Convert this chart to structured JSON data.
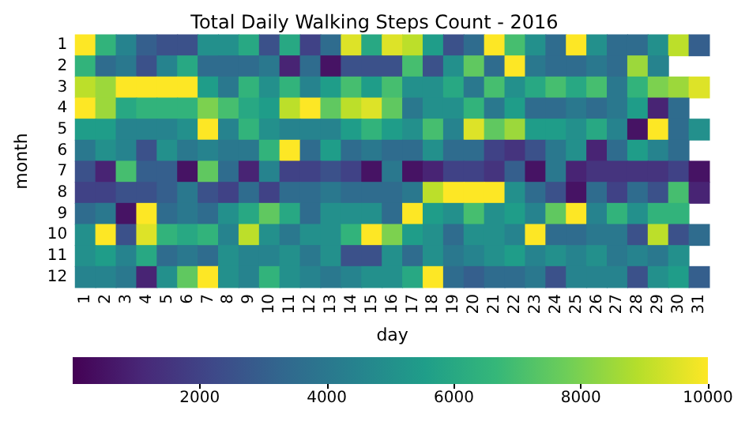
{
  "chart_data": {
    "type": "heatmap",
    "title": "Total Daily Walking Steps Count - 2016",
    "xlabel": "day",
    "ylabel": "month",
    "categories": [
      "1",
      "2",
      "3",
      "4",
      "5",
      "6",
      "7",
      "8",
      "9",
      "10",
      "11",
      "12",
      "13",
      "14",
      "15",
      "16",
      "17",
      "18",
      "19",
      "20",
      "21",
      "22",
      "23",
      "24",
      "25",
      "26",
      "27",
      "28",
      "29",
      "30",
      "31"
    ],
    "y_categories": [
      "1",
      "2",
      "3",
      "4",
      "5",
      "6",
      "7",
      "8",
      "9",
      "10",
      "11",
      "12"
    ],
    "cells": [
      [
        10000,
        6500,
        4500,
        3000,
        2500,
        2500,
        5000,
        5000,
        6000,
        2500,
        6000,
        2000,
        3500,
        9500,
        6000,
        9500,
        9000,
        5500,
        2500,
        3500,
        10000,
        7000,
        5000,
        3500,
        10000,
        5000,
        3500,
        3500,
        5000,
        9000,
        3000
      ],
      [
        6500,
        3500,
        4000,
        2500,
        4500,
        6000,
        3500,
        3500,
        3500,
        4000,
        1000,
        3500,
        500,
        2500,
        2500,
        2500,
        7000,
        2500,
        5000,
        7500,
        3500,
        10000,
        4000,
        3500,
        3500,
        4000,
        3500,
        8500,
        4500,
        null,
        null
      ],
      [
        9000,
        8500,
        10000,
        10000,
        10000,
        10000,
        5500,
        4000,
        6500,
        5000,
        6500,
        4500,
        5500,
        7000,
        5500,
        7000,
        5000,
        5000,
        6000,
        4000,
        7000,
        5000,
        6000,
        7000,
        6000,
        7000,
        4000,
        6500,
        8000,
        8500,
        9500
      ],
      [
        10000,
        8500,
        6000,
        6500,
        6500,
        6500,
        8000,
        7000,
        6000,
        5500,
        9000,
        10000,
        7500,
        9000,
        9500,
        7500,
        4000,
        5000,
        5000,
        6500,
        4000,
        5500,
        3500,
        3500,
        4000,
        3500,
        4000,
        5500,
        1000,
        3500,
        null
      ],
      [
        5500,
        5500,
        4500,
        4500,
        4500,
        5000,
        10000,
        4500,
        6500,
        5000,
        4500,
        4500,
        4500,
        5500,
        6500,
        5500,
        5000,
        7000,
        4500,
        9500,
        7500,
        8500,
        5500,
        5500,
        5000,
        6000,
        4500,
        500,
        10000,
        3500,
        5000
      ],
      [
        4000,
        5000,
        4500,
        2500,
        5000,
        4000,
        4500,
        4000,
        4000,
        6500,
        10000,
        3500,
        5500,
        3500,
        4000,
        3500,
        3500,
        5000,
        3500,
        3500,
        2000,
        1500,
        2500,
        4000,
        5000,
        1000,
        3500,
        5500,
        4500,
        3500,
        null
      ],
      [
        2500,
        1000,
        7000,
        3000,
        3000,
        500,
        7500,
        3500,
        1000,
        4500,
        2000,
        2000,
        2500,
        2000,
        500,
        4000,
        500,
        1000,
        2000,
        2000,
        1500,
        3000,
        500,
        4000,
        1000,
        1500,
        1500,
        1500,
        1500,
        2000,
        500
      ],
      [
        2000,
        2000,
        2500,
        2500,
        3000,
        4000,
        2500,
        2000,
        3500,
        2000,
        3500,
        3500,
        4000,
        3500,
        3500,
        3500,
        4000,
        9000,
        10000,
        10000,
        10000,
        5000,
        3500,
        2500,
        500,
        3500,
        2000,
        3500,
        2500,
        7000,
        1000
      ],
      [
        3500,
        4000,
        500,
        10000,
        3500,
        4000,
        3500,
        5000,
        6000,
        7500,
        6000,
        3500,
        5000,
        5000,
        5000,
        3500,
        10000,
        5500,
        5000,
        7000,
        5000,
        5500,
        4500,
        7500,
        10000,
        4500,
        6500,
        5000,
        6500,
        6500,
        null
      ],
      [
        5000,
        10000,
        2500,
        9500,
        6500,
        6000,
        6500,
        4500,
        9000,
        5000,
        4000,
        5000,
        5000,
        6500,
        10000,
        8000,
        5500,
        5000,
        3500,
        5000,
        5000,
        4500,
        10000,
        3500,
        3500,
        4000,
        4000,
        2500,
        9000,
        2500,
        3500
      ],
      [
        5000,
        5500,
        4500,
        6000,
        3500,
        4000,
        3500,
        5000,
        4500,
        4500,
        5000,
        4000,
        5000,
        2500,
        2500,
        5000,
        3500,
        5000,
        4000,
        4500,
        5000,
        5500,
        4500,
        5000,
        4500,
        5000,
        4000,
        4500,
        4000,
        5000,
        null
      ],
      [
        4500,
        4500,
        4000,
        1000,
        5000,
        7500,
        10000,
        5000,
        4500,
        6500,
        5000,
        4500,
        4000,
        4500,
        5000,
        5000,
        6000,
        10000,
        3500,
        3000,
        3500,
        3500,
        4000,
        2500,
        4500,
        4500,
        4500,
        2500,
        5000,
        5500,
        3000
      ]
    ],
    "clim": [
      0,
      10000
    ],
    "cticks": [
      2000,
      4000,
      6000,
      8000,
      10000
    ]
  }
}
